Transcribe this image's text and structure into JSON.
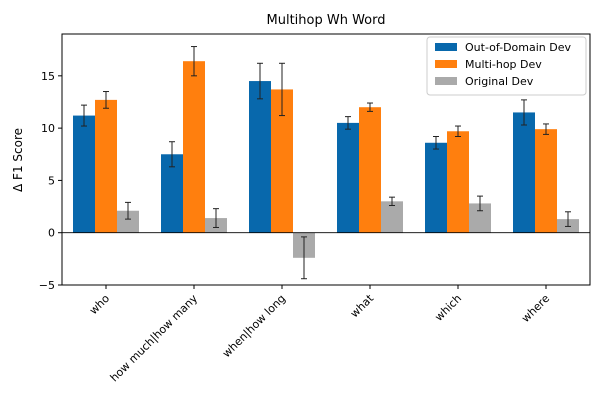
{
  "chart_data": {
    "type": "bar",
    "title": "Multihop Wh Word",
    "xlabel": "",
    "ylabel": "Δ F1 Score",
    "ylim": [
      -5,
      19
    ],
    "yticks": [
      -5,
      0,
      5,
      10,
      15
    ],
    "grid": false,
    "legend_position": "top-right",
    "categories": [
      "who",
      "how much|how many",
      "when|how long",
      "what",
      "which",
      "where"
    ],
    "series": [
      {
        "name": "Out-of-Domain Dev",
        "color": "#0868ac",
        "values": [
          11.2,
          7.5,
          14.5,
          10.5,
          8.6,
          11.5
        ],
        "errors": [
          1.0,
          1.2,
          1.7,
          0.6,
          0.6,
          1.2
        ]
      },
      {
        "name": "Multi-hop Dev",
        "color": "#ff7f0e",
        "values": [
          12.7,
          16.4,
          13.7,
          12.0,
          9.7,
          9.9
        ],
        "errors": [
          0.8,
          1.4,
          2.5,
          0.4,
          0.5,
          0.5
        ]
      },
      {
        "name": "Original Dev",
        "color": "#aaaaaa",
        "values": [
          2.1,
          1.4,
          -2.4,
          3.0,
          2.8,
          1.3
        ],
        "errors": [
          0.8,
          0.9,
          2.0,
          0.4,
          0.7,
          0.7
        ]
      }
    ]
  }
}
